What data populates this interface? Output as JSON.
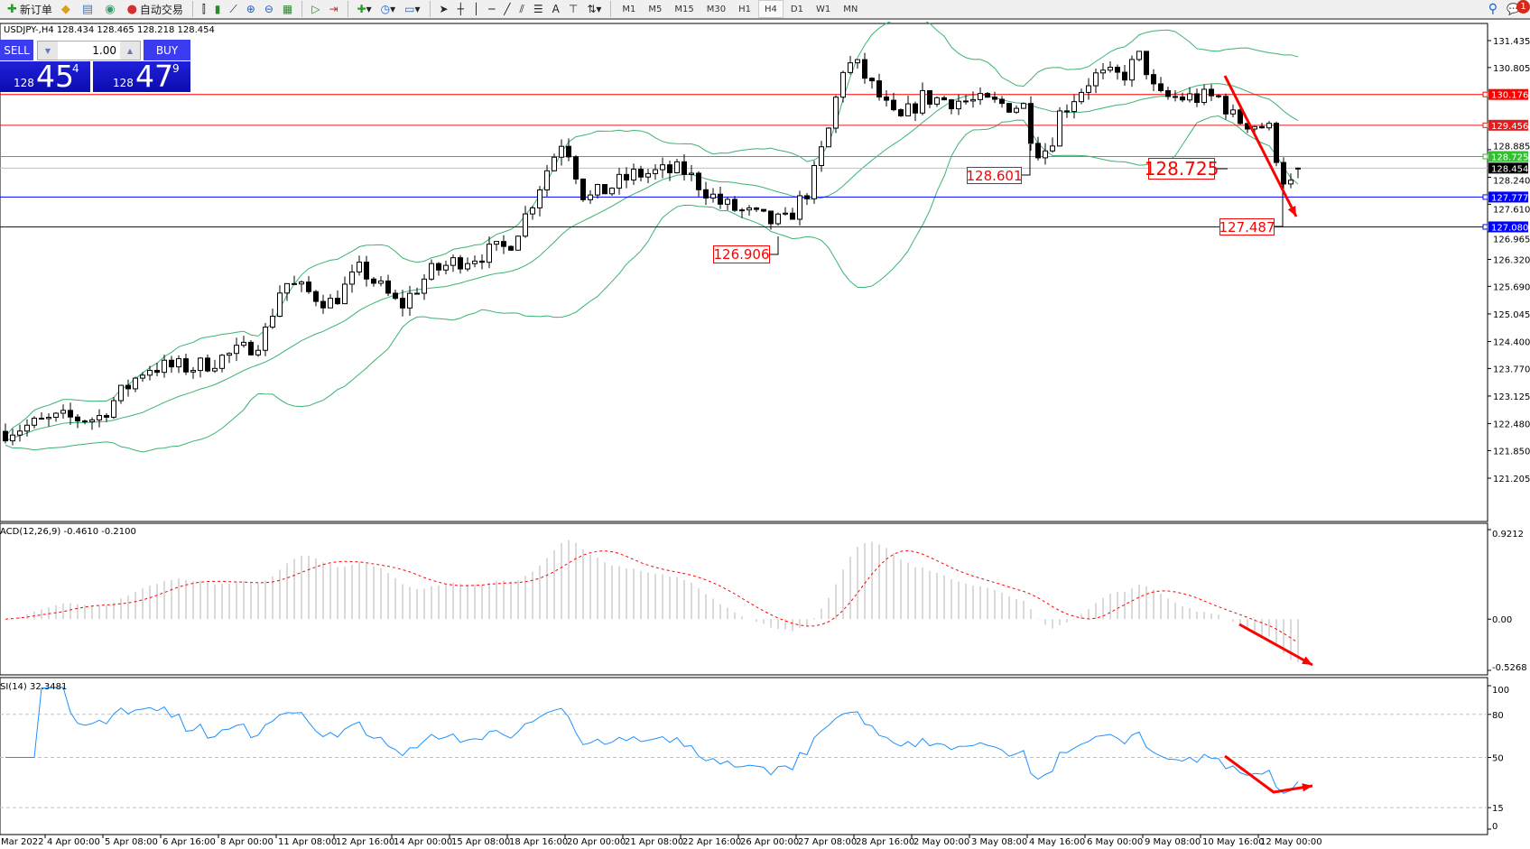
{
  "toolbar": {
    "items": [
      {
        "icon": "new-order-icon",
        "label": "新订单"
      },
      {
        "icon": "experts-icon",
        "label": ""
      },
      {
        "icon": "history-center-icon",
        "label": ""
      },
      {
        "icon": "signals-icon",
        "label": ""
      },
      {
        "icon": "autotrading-icon",
        "label": "自动交易"
      }
    ],
    "timeframes": [
      "M1",
      "M5",
      "M15",
      "M30",
      "H1",
      "H4",
      "D1",
      "W1",
      "MN"
    ],
    "active_timeframe": "H4",
    "notification_count": "1"
  },
  "chart": {
    "symbol_header": "USDJPY-,H4  128.434 128.465 128.218 128.454",
    "one_click": {
      "sell_label": "SELL",
      "buy_label": "BUY",
      "lot": "1.00",
      "sell_price": {
        "big_figure": "128",
        "pips": "45",
        "fraction": "4"
      },
      "buy_price": {
        "big_figure": "128",
        "pips": "47",
        "fraction": "9"
      }
    },
    "price_axis_ticks": [
      "131.435",
      "130.805",
      "128.885",
      "128.240",
      "127.610",
      "126.965",
      "126.320",
      "125.690",
      "125.045",
      "124.400",
      "123.770",
      "123.125",
      "122.480",
      "121.850",
      "121.205"
    ],
    "price_range": [
      121.205,
      131.435
    ],
    "horizontal_lines": [
      {
        "price": "130.176",
        "color": "#ff0000"
      },
      {
        "price": "129.456",
        "color": "#e41c1c"
      },
      {
        "price": "128.725",
        "color": "#32c032"
      },
      {
        "price": "128.454",
        "color": "#000000",
        "line_color": "#c0c0c0"
      },
      {
        "price": "127.777",
        "color": "#0000ff"
      },
      {
        "price": "127.080",
        "color": "#0000ff"
      }
    ],
    "annotations": [
      "128.601",
      "128.725",
      "127.487",
      "126.906"
    ],
    "bollinger_color": "#3cb371",
    "arrow_color": "#ff0000"
  },
  "macd": {
    "label": "ACD(12,26,9) -0.4610 -0.2100",
    "axis": [
      "0.9212",
      "0.00",
      "-0.5268"
    ],
    "range": [
      -0.5268,
      0.9212
    ],
    "histogram_color": "#c0c0c0",
    "signal_color": "#ff0000"
  },
  "rsi": {
    "label": "SI(14) 32.3481",
    "axis": [
      "100",
      "80",
      "50",
      "15",
      "0"
    ],
    "levels": [
      80,
      50,
      15
    ],
    "line_color": "#1e90ff"
  },
  "time_axis": [
    "Mar 2022",
    "4 Apr 00:00",
    "5 Apr 08:00",
    "6 Apr 16:00",
    "8 Apr 00:00",
    "11 Apr 08:00",
    "12 Apr 16:00",
    "14 Apr 00:00",
    "15 Apr 08:00",
    "18 Apr 16:00",
    "20 Apr 00:00",
    "21 Apr 08:00",
    "22 Apr 16:00",
    "26 Apr 00:00",
    "27 Apr 08:00",
    "28 Apr 16:00",
    "2 May 00:00",
    "3 May 08:00",
    "4 May 16:00",
    "6 May 00:00",
    "9 May 08:00",
    "10 May 16:00",
    "12 May 00:00"
  ]
}
